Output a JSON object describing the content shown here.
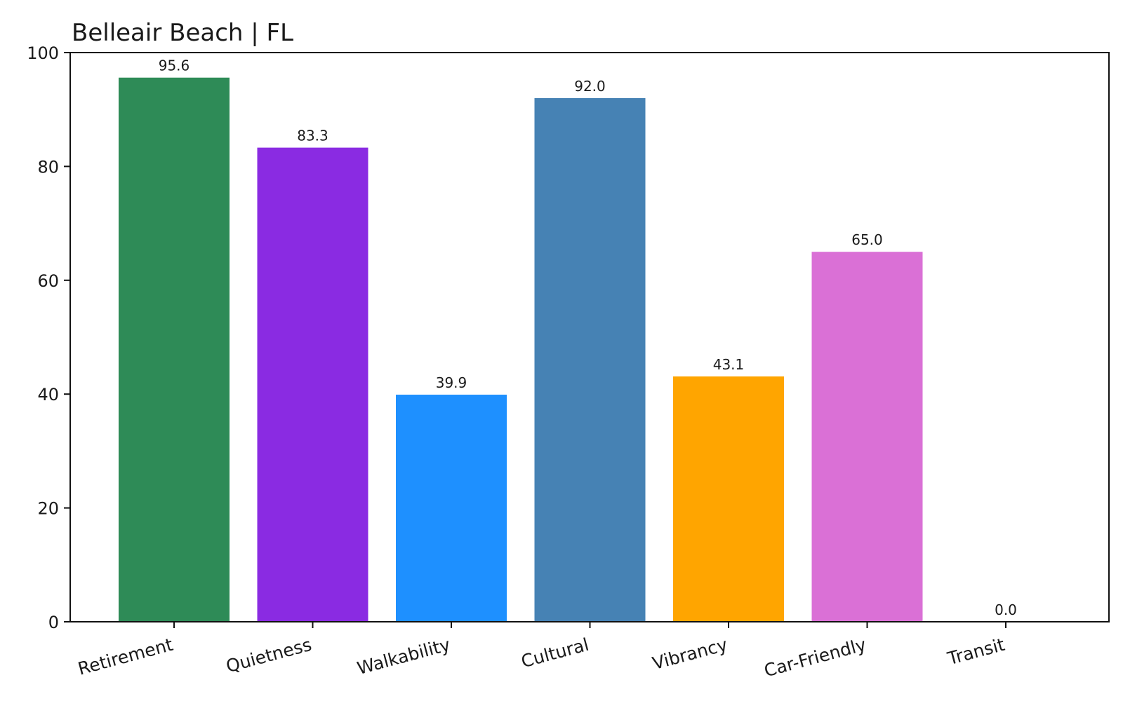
{
  "chart_data": {
    "type": "bar",
    "title": "Belleair Beach | FL",
    "xlabel": "",
    "ylabel": "",
    "ylim": [
      0,
      100
    ],
    "yticks": [
      "0",
      "20",
      "40",
      "60",
      "80",
      "100"
    ],
    "grid": false,
    "categories": [
      "Retirement",
      "Quietness",
      "Walkability",
      "Cultural",
      "Vibrancy",
      "Car-Friendly",
      "Transit"
    ],
    "values": [
      95.6,
      83.3,
      39.9,
      92.0,
      43.1,
      65.0,
      0.0
    ],
    "value_labels": [
      "95.6",
      "83.3",
      "39.9",
      "92.0",
      "43.1",
      "65.0",
      "0.0"
    ],
    "colors": [
      "#2e8b57",
      "#8a2be2",
      "#1e90ff",
      "#4682b4",
      "#ffa500",
      "#da70d6",
      "#ff6347"
    ]
  }
}
